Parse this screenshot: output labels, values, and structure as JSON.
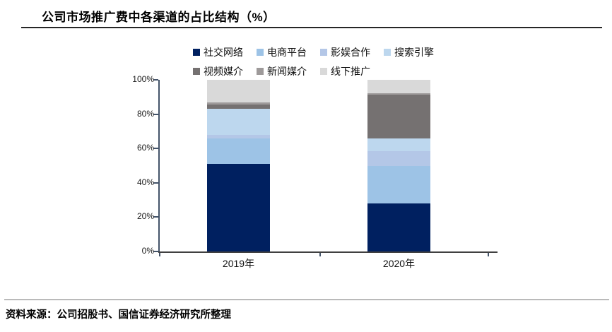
{
  "header": {
    "title": "公司市场推广费中各渠道的占比结构（%）"
  },
  "footer": {
    "source": "资料来源：公司招股书、国信证券经济研究所整理"
  },
  "chart_data": {
    "type": "bar",
    "stacked": true,
    "title": "公司市场推广费中各渠道的占比结构（%）",
    "categories": [
      "2019年",
      "2020年"
    ],
    "series": [
      {
        "name": "社交网络",
        "color": "#002060",
        "values": [
          51,
          28
        ]
      },
      {
        "name": "电商平台",
        "color": "#9DC3E6",
        "values": [
          15,
          22
        ]
      },
      {
        "name": "影娱合作",
        "color": "#B4C7E7",
        "values": [
          2,
          8.5
        ]
      },
      {
        "name": "搜索引擎",
        "color": "#BDD7EE",
        "values": [
          15,
          7.5
        ]
      },
      {
        "name": "视频媒介",
        "color": "#757171",
        "values": [
          2.5,
          25.5
        ]
      },
      {
        "name": "新闻媒介",
        "color": "#9E9A9A",
        "values": [
          1.5,
          0.5
        ]
      },
      {
        "name": "线下推广",
        "color": "#D9D9D9",
        "values": [
          13,
          8
        ]
      }
    ],
    "y_axis": {
      "min": 0,
      "max": 100,
      "tick_step": 20,
      "tick_labels": [
        "0%",
        "20%",
        "40%",
        "60%",
        "80%",
        "100%"
      ]
    },
    "legend_position": "top",
    "legend_rows": [
      4,
      3
    ],
    "grid": false,
    "xlabel": "",
    "ylabel": ""
  }
}
